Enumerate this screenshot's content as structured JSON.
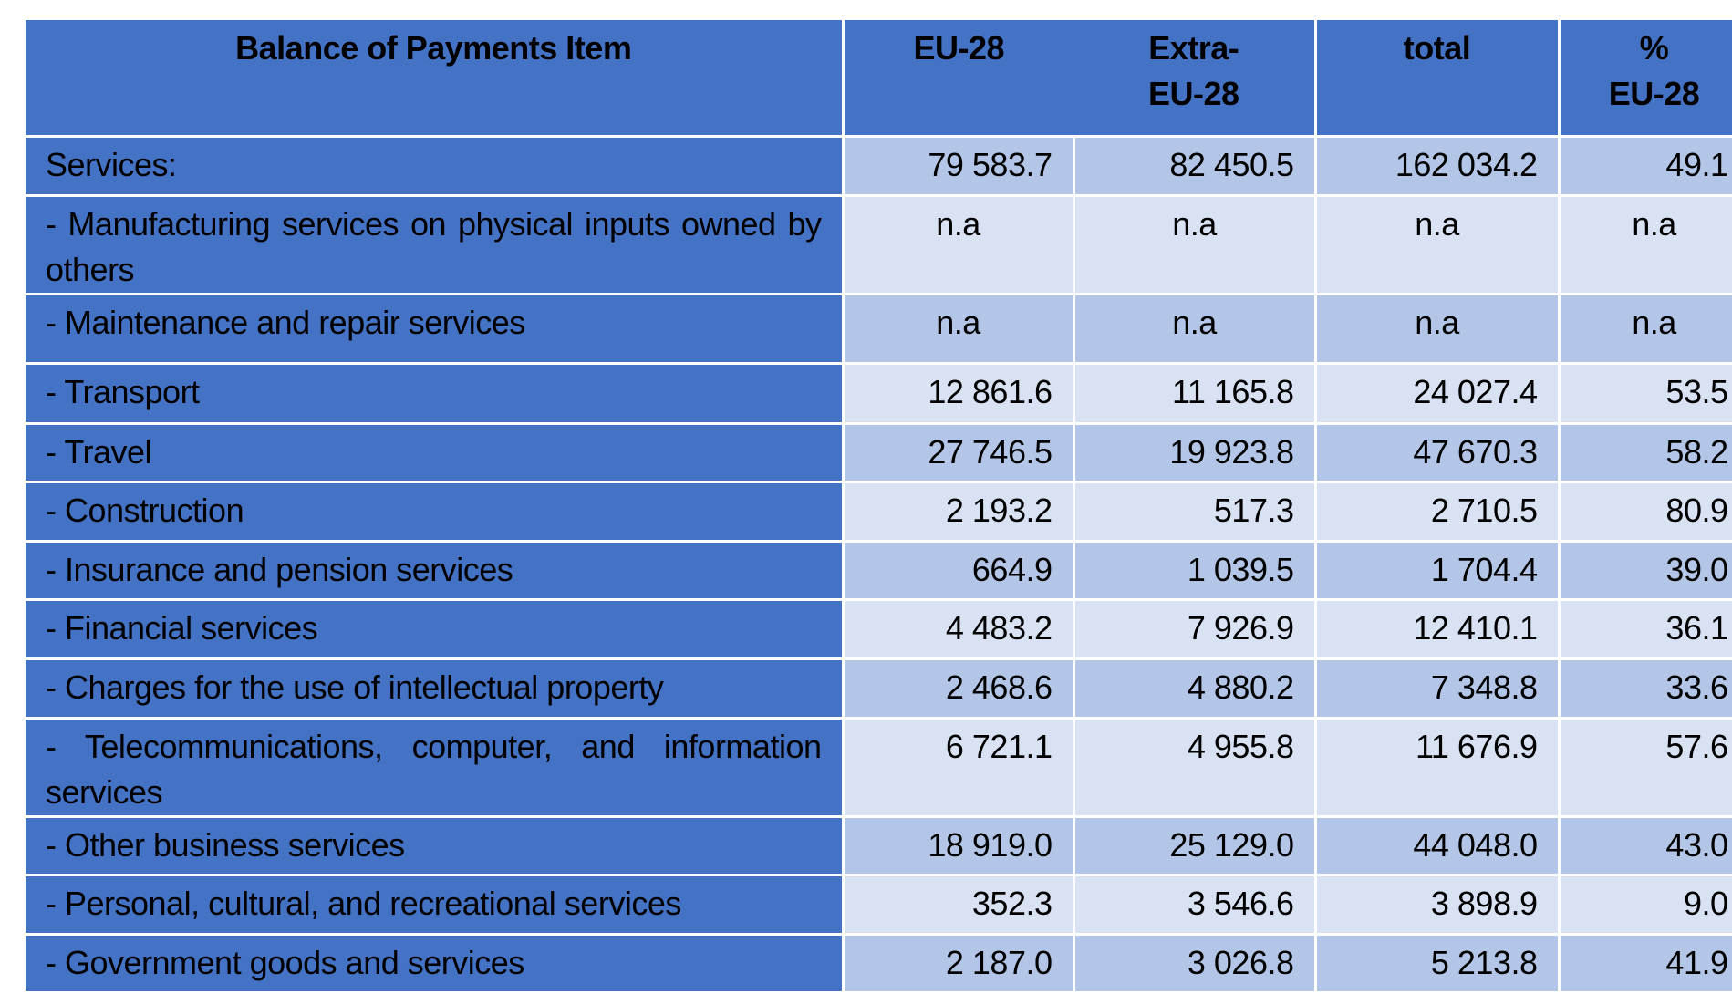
{
  "table": {
    "headers": {
      "item": "Balance of Payments Item",
      "eu28": "EU-28",
      "extra_line1": "Extra-",
      "extra_line2": "EU-28",
      "total": "total",
      "pct_line1": "%",
      "pct_line2": "EU-28"
    },
    "colors": {
      "header_blue": "#4472C4",
      "band_dark": "#B4C6E7",
      "band_light": "#D9E2F3",
      "grid": "#FFFFFF"
    },
    "rows": [
      {
        "label": "Services:",
        "eu28": "79 583.7",
        "extra": "82 450.5",
        "total": "162 034.2",
        "pct": "49.1"
      },
      {
        "label": "- Manufacturing services on physical inputs owned by others",
        "eu28": "n.a",
        "extra": "n.a",
        "total": "n.a",
        "pct": "n.a"
      },
      {
        "label": "- Maintenance and repair services",
        "eu28": "n.a",
        "extra": "n.a",
        "total": "n.a",
        "pct": "n.a"
      },
      {
        "label": "- Transport",
        "eu28": "12 861.6",
        "extra": "11 165.8",
        "total": "24 027.4",
        "pct": "53.5"
      },
      {
        "label": "- Travel",
        "eu28": "27 746.5",
        "extra": "19 923.8",
        "total": "47 670.3",
        "pct": "58.2"
      },
      {
        "label": "- Construction",
        "eu28": "2 193.2",
        "extra": "517.3",
        "total": "2 710.5",
        "pct": "80.9"
      },
      {
        "label": "- Insurance and pension services",
        "eu28": "664.9",
        "extra": "1 039.5",
        "total": "1 704.4",
        "pct": "39.0"
      },
      {
        "label": "- Financial services",
        "eu28": "4 483.2",
        "extra": "7 926.9",
        "total": "12 410.1",
        "pct": "36.1"
      },
      {
        "label": "- Charges for the use of intellectual property",
        "eu28": "2 468.6",
        "extra": "4 880.2",
        "total": "7 348.8",
        "pct": "33.6"
      },
      {
        "label": "- Telecommunications, computer, and information services",
        "eu28": "6 721.1",
        "extra": "4 955.8",
        "total": "11 676.9",
        "pct": "57.6"
      },
      {
        "label": "- Other business services",
        "eu28": "18 919.0",
        "extra": "25 129.0",
        "total": "44 048.0",
        "pct": "43.0"
      },
      {
        "label": "- Personal, cultural, and recreational services",
        "eu28": "352.3",
        "extra": "3 546.6",
        "total": "3 898.9",
        "pct": "9.0"
      },
      {
        "label": "- Government goods and services",
        "eu28": "2 187.0",
        "extra": "3 026.8",
        "total": "5 213.8",
        "pct": "41.9"
      }
    ]
  }
}
